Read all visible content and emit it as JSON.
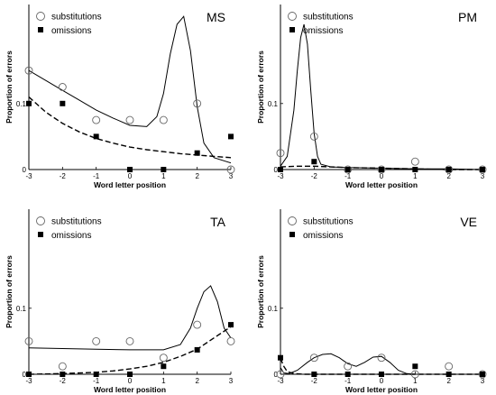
{
  "chart_data": [
    {
      "type": "scatter",
      "title": "MS",
      "xlabel": "Word letter position",
      "ylabel": "Proportion of errors",
      "xlim": [
        -3,
        3
      ],
      "ylim": [
        0,
        0.25
      ],
      "xticks": [
        "-3",
        "-2",
        "-1",
        "0",
        "1",
        "2",
        "3"
      ],
      "yticks": [
        "0",
        "0.1"
      ],
      "legend": {
        "position": "top-left",
        "entries": [
          "substitutions",
          "omissions"
        ]
      },
      "series": [
        {
          "name": "substitutions",
          "marker": "open-circle",
          "x": [
            -3,
            -2,
            -1,
            0,
            1,
            2,
            3
          ],
          "y": [
            0.15,
            0.125,
            0.075,
            0.075,
            0.075,
            0.1,
            0.0
          ]
        },
        {
          "name": "omissions",
          "marker": "filled-square",
          "x": [
            -3,
            -2,
            -1,
            0,
            1,
            2,
            3
          ],
          "y": [
            0.1,
            0.1,
            0.05,
            0.0,
            0.0,
            0.025,
            0.05
          ]
        }
      ],
      "fit_lines": [
        {
          "series": "substitutions",
          "style": "solid",
          "x": [
            -3,
            -2.5,
            -2,
            -1.5,
            -1,
            -0.5,
            0,
            0.5,
            0.8,
            1.0,
            1.2,
            1.4,
            1.6,
            1.8,
            2.0,
            2.2,
            2.5,
            3.0
          ],
          "y": [
            0.15,
            0.135,
            0.12,
            0.105,
            0.09,
            0.078,
            0.067,
            0.065,
            0.08,
            0.115,
            0.175,
            0.22,
            0.232,
            0.18,
            0.095,
            0.04,
            0.018,
            0.01
          ]
        },
        {
          "series": "omissions",
          "style": "dashed",
          "x": [
            -3,
            -2.5,
            -2,
            -1.5,
            -1,
            -0.5,
            0,
            0.5,
            1,
            1.5,
            2,
            2.5,
            3
          ],
          "y": [
            0.11,
            0.087,
            0.07,
            0.057,
            0.047,
            0.04,
            0.034,
            0.03,
            0.027,
            0.024,
            0.022,
            0.02,
            0.018
          ]
        }
      ]
    },
    {
      "type": "scatter",
      "title": "PM",
      "xlabel": "Word letter position",
      "ylabel": "Proportion of errors",
      "xlim": [
        -3,
        3
      ],
      "ylim": [
        0,
        0.25
      ],
      "xticks": [
        "-3",
        "-2",
        "-1",
        "0",
        "1",
        "2",
        "3"
      ],
      "yticks": [
        "0",
        "0.1"
      ],
      "legend": {
        "position": "top-left",
        "entries": [
          "substitutions",
          "omissions"
        ]
      },
      "series": [
        {
          "name": "substitutions",
          "marker": "open-circle",
          "x": [
            -3,
            -2,
            -1,
            0,
            1,
            2,
            3
          ],
          "y": [
            0.025,
            0.05,
            0.0,
            0.0,
            0.012,
            0.0,
            0.0
          ]
        },
        {
          "name": "omissions",
          "marker": "filled-square",
          "x": [
            -3,
            -2,
            -1,
            0,
            1,
            2,
            3
          ],
          "y": [
            0.0,
            0.012,
            0.0,
            0.0,
            0.0,
            0.0,
            0.0
          ]
        }
      ],
      "fit_lines": [
        {
          "series": "substitutions",
          "style": "solid",
          "x": [
            -3,
            -2.8,
            -2.6,
            -2.5,
            -2.4,
            -2.3,
            -2.2,
            -2.1,
            -2.0,
            -1.9,
            -1.8,
            -1.5,
            -1.0,
            0,
            1,
            2,
            3
          ],
          "y": [
            0.005,
            0.02,
            0.09,
            0.15,
            0.2,
            0.22,
            0.19,
            0.12,
            0.055,
            0.02,
            0.008,
            0.004,
            0.003,
            0.002,
            0.001,
            0.001,
            0.0
          ]
        },
        {
          "series": "omissions",
          "style": "dashed",
          "x": [
            -3,
            -2.5,
            -2,
            -1.5,
            -1,
            0,
            1,
            2,
            3
          ],
          "y": [
            0.004,
            0.005,
            0.005,
            0.004,
            0.003,
            0.002,
            0.001,
            0.0,
            0.0
          ]
        }
      ]
    },
    {
      "type": "scatter",
      "title": "TA",
      "xlabel": "Word letter position",
      "ylabel": "Proportion of errors",
      "xlim": [
        -3,
        3
      ],
      "ylim": [
        0,
        0.25
      ],
      "xticks": [
        "-3",
        "-2",
        "-1",
        "0",
        "1",
        "2",
        "3"
      ],
      "yticks": [
        "0",
        "0.1"
      ],
      "legend": {
        "position": "top-left",
        "entries": [
          "substitutions",
          "omissions"
        ]
      },
      "series": [
        {
          "name": "substitutions",
          "marker": "open-circle",
          "x": [
            -3,
            -2,
            -1,
            0,
            1,
            2,
            3
          ],
          "y": [
            0.05,
            0.012,
            0.05,
            0.05,
            0.025,
            0.075,
            0.05
          ]
        },
        {
          "name": "omissions",
          "marker": "filled-square",
          "x": [
            -3,
            -2,
            -1,
            0,
            1,
            2,
            3
          ],
          "y": [
            0.0,
            0.0,
            0.0,
            0.0,
            0.012,
            0.037,
            0.075
          ]
        }
      ],
      "fit_lines": [
        {
          "series": "substitutions",
          "style": "solid",
          "x": [
            -3,
            -2,
            -1,
            0,
            1,
            1.5,
            1.8,
            2.0,
            2.2,
            2.4,
            2.6,
            2.8,
            3.0
          ],
          "y": [
            0.04,
            0.039,
            0.038,
            0.037,
            0.037,
            0.045,
            0.07,
            0.1,
            0.125,
            0.134,
            0.11,
            0.07,
            0.055
          ]
        },
        {
          "series": "omissions",
          "style": "dashed",
          "x": [
            -3,
            -2,
            -1,
            -0.5,
            0,
            0.5,
            1,
            1.5,
            2,
            2.5,
            3
          ],
          "y": [
            0.0,
            0.001,
            0.003,
            0.005,
            0.008,
            0.012,
            0.018,
            0.027,
            0.038,
            0.055,
            0.072
          ]
        }
      ]
    },
    {
      "type": "scatter",
      "title": "VE",
      "xlabel": "Word letter position",
      "ylabel": "Proportion of errors",
      "xlim": [
        -3,
        3
      ],
      "ylim": [
        0,
        0.25
      ],
      "xticks": [
        "-3",
        "-2",
        "-1",
        "0",
        "1",
        "2",
        "3"
      ],
      "yticks": [
        "0",
        "0.1"
      ],
      "legend": {
        "position": "top-left",
        "entries": [
          "substitutions",
          "omissions"
        ]
      },
      "series": [
        {
          "name": "substitutions",
          "marker": "open-circle",
          "x": [
            -3,
            -2,
            -1,
            0,
            1,
            2,
            3
          ],
          "y": [
            0.0,
            0.025,
            0.012,
            0.025,
            0.0,
            0.012,
            0.0
          ]
        },
        {
          "name": "omissions",
          "marker": "filled-square",
          "x": [
            -3,
            -2,
            -1,
            0,
            1,
            2,
            3
          ],
          "y": [
            0.025,
            0.0,
            0.0,
            0.0,
            0.012,
            0.0,
            0.0
          ]
        }
      ],
      "fit_lines": [
        {
          "series": "substitutions",
          "style": "solid",
          "x": [
            -3,
            -2.9,
            -2.75,
            -2.5,
            -2.2,
            -2.0,
            -1.75,
            -1.5,
            -1.25,
            -1.0,
            -0.75,
            -0.5,
            -0.25,
            0.0,
            0.25,
            0.5,
            0.75,
            1.0,
            1.5,
            2.0,
            2.5,
            3.0
          ],
          "y": [
            0.01,
            0.002,
            0.001,
            0.006,
            0.018,
            0.025,
            0.03,
            0.031,
            0.025,
            0.016,
            0.012,
            0.018,
            0.026,
            0.027,
            0.018,
            0.006,
            0.001,
            0.0,
            0.0,
            0.0,
            0.0,
            0.0
          ]
        },
        {
          "series": "omissions",
          "style": "dashed",
          "x": [
            -3,
            -2.9,
            -2.8,
            -2.6,
            -2.3,
            -2,
            -1,
            0,
            1,
            2,
            3
          ],
          "y": [
            0.024,
            0.012,
            0.004,
            0.001,
            0.0,
            0.0,
            0.0,
            0.0,
            0.0,
            0.0,
            0.0
          ]
        }
      ]
    }
  ]
}
